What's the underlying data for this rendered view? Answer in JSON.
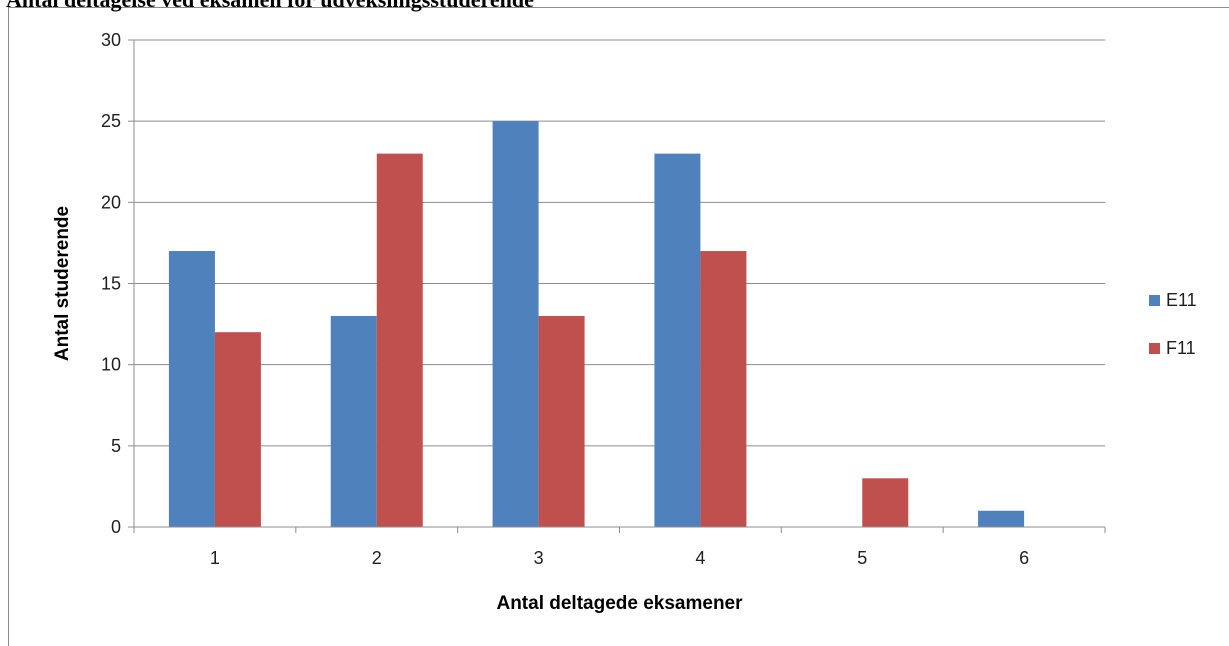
{
  "page": {
    "title": "Antal deltagelse ved eksamen for udvekslingsstuderende"
  },
  "chart_data": {
    "type": "bar",
    "title": "Antal deltagelse ved eksamen for udvekslingsstuderende",
    "xlabel": "Antal deltagede eksamener",
    "ylabel": "Antal studerende",
    "categories": [
      "1",
      "2",
      "3",
      "4",
      "5",
      "6"
    ],
    "series": [
      {
        "name": "E11",
        "color": "#4f81bd",
        "values": [
          17,
          13,
          25,
          23,
          0,
          1
        ]
      },
      {
        "name": "F11",
        "color": "#c0504d",
        "values": [
          12,
          23,
          13,
          17,
          3,
          0
        ]
      }
    ],
    "ylim": [
      0,
      30
    ],
    "yticks": [
      "0",
      "5",
      "10",
      "15",
      "20",
      "25",
      "30"
    ],
    "grid": true,
    "legend": "right"
  }
}
